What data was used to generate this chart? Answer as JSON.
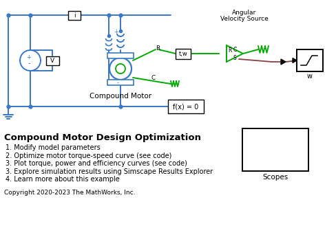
{
  "blue": "#3878c8",
  "green": "#00aa00",
  "brown": "#8B4040",
  "title": "Compound Motor Design Optimization",
  "items": [
    "1. Modify model parameters",
    "2. Optimize motor torque-speed curve (see code)",
    "3. Plot torque, power and efficiency curves (see code)",
    "3. Explore simulation results using Simscape Results Explorer",
    "4. Learn more about this example"
  ],
  "copyright": "Copyright 2020-2023 The MathWorks, Inc.",
  "ang_vel_line1": "Angular",
  "ang_vel_line2": "Velocity Source",
  "compound_motor_label": "Compound Motor",
  "scopes_label": "Scopes",
  "fx_label": "f(x) = 0",
  "i_label": "i",
  "v_label": "V",
  "w_label": "w",
  "tw_label": "t,w",
  "R_label": "R",
  "C_label": "C",
  "S_label": "S",
  "plus_label": "+",
  "minus_label": "-"
}
